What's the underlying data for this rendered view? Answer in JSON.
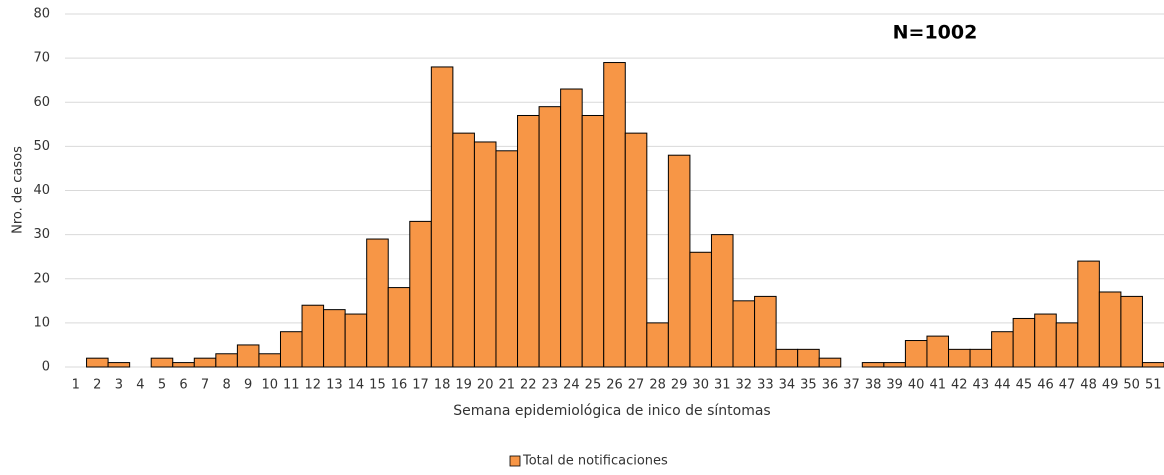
{
  "chart_data": {
    "type": "bar",
    "annotation": "N=1002",
    "x_label": "Semana epidemiológica de inico de síntomas",
    "y_label": "Nro. de casos",
    "categories": [
      "1",
      "2",
      "3",
      "4",
      "5",
      "6",
      "7",
      "8",
      "9",
      "10",
      "11",
      "12",
      "13",
      "14",
      "15",
      "16",
      "17",
      "18",
      "19",
      "20",
      "21",
      "22",
      "23",
      "24",
      "25",
      "26",
      "27",
      "28",
      "29",
      "30",
      "31",
      "32",
      "33",
      "34",
      "35",
      "36",
      "37",
      "38",
      "39",
      "40",
      "41",
      "42",
      "43",
      "44",
      "45",
      "46",
      "47",
      "48",
      "49",
      "50",
      "51"
    ],
    "series": [
      {
        "name": "Total de notificaciones",
        "color": "#f79646",
        "values": [
          0,
          2,
          1,
          0,
          2,
          1,
          2,
          3,
          5,
          3,
          8,
          14,
          13,
          12,
          29,
          18,
          33,
          68,
          53,
          51,
          49,
          57,
          59,
          63,
          57,
          69,
          53,
          10,
          48,
          26,
          30,
          15,
          16,
          4,
          4,
          2,
          0,
          1,
          1,
          6,
          7,
          4,
          4,
          8,
          11,
          12,
          10,
          24,
          17,
          16,
          1
        ]
      }
    ],
    "ylim": [
      0,
      80
    ],
    "yticks": [
      0,
      10,
      20,
      30,
      40,
      50,
      60,
      70,
      80
    ],
    "grid": true,
    "legend": "bottom"
  }
}
